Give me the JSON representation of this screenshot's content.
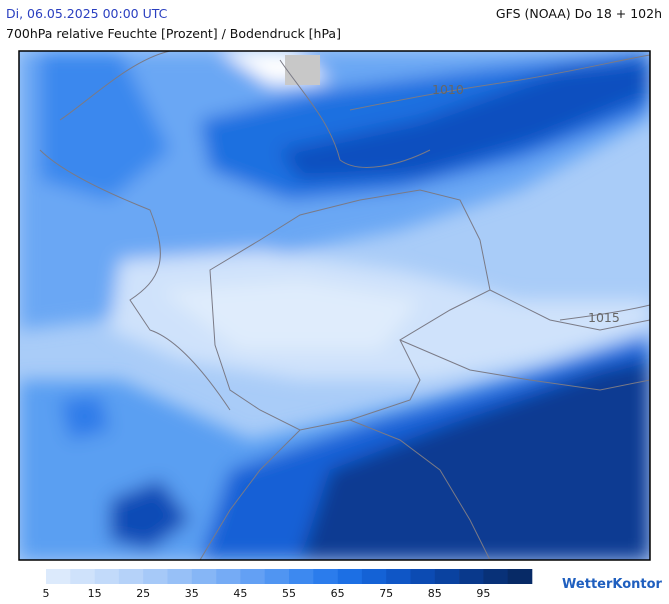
{
  "header": {
    "left": "Di, 06.05.2025 00:00 UTC",
    "right": "GFS (NOAA) Do 18 + 102h",
    "subtitle": "700hPa relative Feuchte [Prozent] / Bodendruck [hPa]"
  },
  "map": {
    "isobar_labels": [
      "1010",
      "1015"
    ]
  },
  "colorbar": {
    "colors": [
      "#dceafc",
      "#cfe2fb",
      "#c2dafa",
      "#b5d2f9",
      "#a6c9f8",
      "#97c0f7",
      "#86b6f6",
      "#75abf5",
      "#63a0f4",
      "#5095f2",
      "#3d89f0",
      "#2b7cec",
      "#1c6fe4",
      "#1462d6",
      "#0f56c6",
      "#0c4bb3",
      "#0a42a0",
      "#09398c",
      "#083178",
      "#072a66"
    ],
    "labels": [
      5,
      15,
      25,
      35,
      45,
      55,
      65,
      75,
      85,
      95
    ]
  },
  "logo": "WetterKontor"
}
